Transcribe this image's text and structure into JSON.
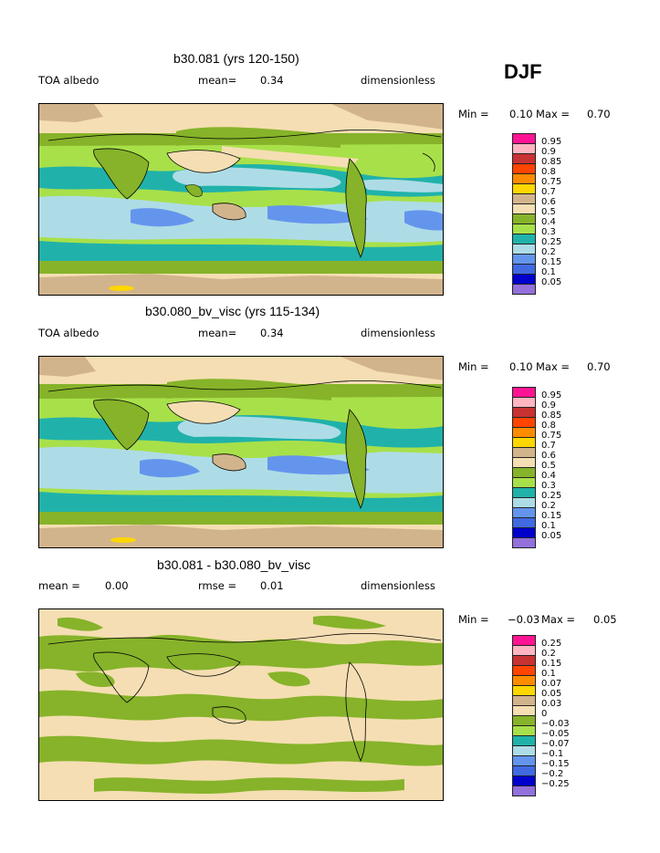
{
  "season": "DJF",
  "panels": [
    {
      "title": "b30.081 (yrs 120-150)",
      "left_label": "TOA albedo",
      "stat_label": "mean=",
      "stat_value": "0.34",
      "units": "dimensionless",
      "min_label": "Min =",
      "min_value": "0.10",
      "max_label": "Max =",
      "max_value": "0.70",
      "colorbar_levels": [
        "0.95",
        "0.9",
        "0.85",
        "0.8",
        "0.75",
        "0.7",
        "0.6",
        "0.5",
        "0.4",
        "0.3",
        "0.25",
        "0.2",
        "0.15",
        "0.1",
        "0.05"
      ],
      "colorbar_colors": [
        "#ff1493",
        "#ffb6c1",
        "#c83232",
        "#ff4500",
        "#ff8c00",
        "#ffd700",
        "#d2b48c",
        "#f5deb3",
        "#86b32a",
        "#a8e04a",
        "#20b2aa",
        "#aedce6",
        "#6495ed",
        "#4169e1",
        "#0000cd",
        "#9370db"
      ]
    },
    {
      "title": "b30.080_bv_visc (yrs 115-134)",
      "left_label": "TOA albedo",
      "stat_label": "mean=",
      "stat_value": "0.34",
      "units": "dimensionless",
      "min_label": "Min =",
      "min_value": "0.10",
      "max_label": "Max =",
      "max_value": "0.70",
      "colorbar_levels": [
        "0.95",
        "0.9",
        "0.85",
        "0.8",
        "0.75",
        "0.7",
        "0.6",
        "0.5",
        "0.4",
        "0.3",
        "0.25",
        "0.2",
        "0.15",
        "0.1",
        "0.05"
      ],
      "colorbar_colors": [
        "#ff1493",
        "#ffb6c1",
        "#c83232",
        "#ff4500",
        "#ff8c00",
        "#ffd700",
        "#d2b48c",
        "#f5deb3",
        "#86b32a",
        "#a8e04a",
        "#20b2aa",
        "#aedce6",
        "#6495ed",
        "#4169e1",
        "#0000cd",
        "#9370db"
      ]
    },
    {
      "title": "b30.081 - b30.080_bv_visc",
      "left_label": "mean =",
      "left_value": "0.00",
      "stat_label": "rmse =",
      "stat_value": "0.01",
      "units": "dimensionless",
      "min_label": "Min =",
      "min_value": "−0.03",
      "max_label": "Max =",
      "max_value": "0.05",
      "colorbar_levels": [
        "0.25",
        "0.2",
        "0.15",
        "0.1",
        "0.07",
        "0.05",
        "0.03",
        "0",
        "−0.03",
        "−0.05",
        "−0.07",
        "−0.1",
        "−0.15",
        "−0.2",
        "−0.25"
      ],
      "colorbar_colors": [
        "#ff1493",
        "#ffb6c1",
        "#c83232",
        "#ff4500",
        "#ff8c00",
        "#ffd700",
        "#d2b48c",
        "#f5deb3",
        "#86b32a",
        "#a8e04a",
        "#20b2aa",
        "#aedce6",
        "#6495ed",
        "#4169e1",
        "#0000cd",
        "#9370db"
      ]
    }
  ],
  "palette": {
    "tan": "#d2b48c",
    "wheat": "#f5deb3",
    "green": "#86b32a",
    "lightgreen": "#a8e04a",
    "teal": "#20b2aa",
    "lightblue": "#aedce6",
    "cornflower": "#6495ed",
    "royal": "#4169e1",
    "yellow": "#ffd700"
  }
}
